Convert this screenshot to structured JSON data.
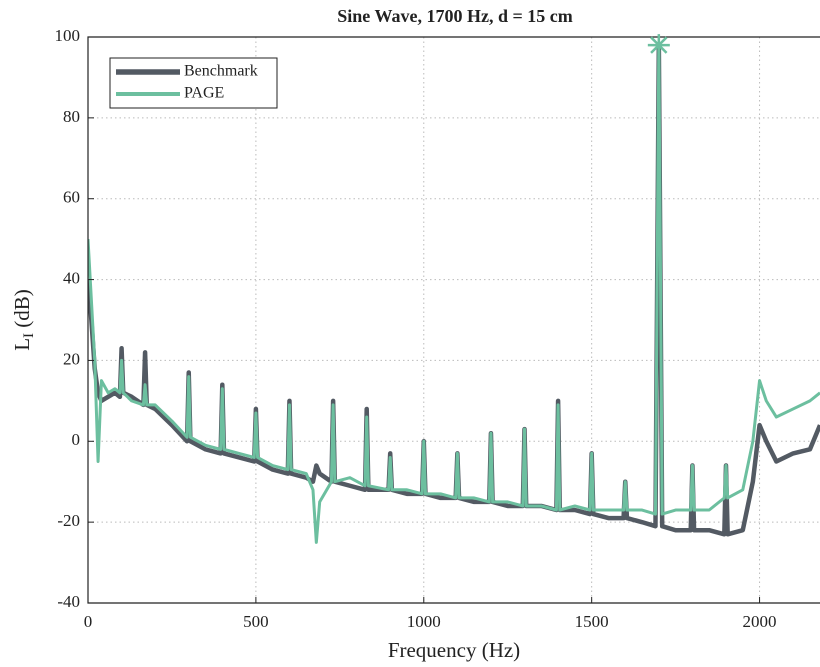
{
  "chart_data": {
    "type": "line",
    "title": "Sine Wave, 1700 Hz, d = 15 cm",
    "xlabel": "Frequency (Hz)",
    "ylabel": {
      "main": "L",
      "sub": "I",
      "unit": " (dB)"
    },
    "x": [
      0,
      10,
      20,
      30,
      40,
      60,
      80,
      95,
      100,
      105,
      130,
      165,
      170,
      175,
      200,
      250,
      295,
      300,
      305,
      350,
      395,
      400,
      405,
      450,
      495,
      500,
      505,
      550,
      595,
      600,
      605,
      650,
      670,
      680,
      690,
      725,
      730,
      735,
      780,
      825,
      830,
      835,
      895,
      900,
      905,
      950,
      995,
      1000,
      1005,
      1050,
      1095,
      1100,
      1105,
      1150,
      1195,
      1200,
      1205,
      1250,
      1295,
      1300,
      1305,
      1350,
      1395,
      1400,
      1405,
      1450,
      1495,
      1500,
      1505,
      1550,
      1595,
      1600,
      1605,
      1650,
      1690,
      1700,
      1710,
      1750,
      1795,
      1800,
      1805,
      1850,
      1895,
      1900,
      1905,
      1950,
      1980,
      2000,
      2020,
      2050,
      2100,
      2150,
      2180
    ],
    "series": [
      {
        "name": "Benchmark",
        "color": "#535a63",
        "width": 4.5,
        "values": [
          40,
          30,
          18,
          12,
          10,
          11,
          12,
          11,
          23,
          12,
          11,
          9,
          22,
          9,
          8,
          4,
          0,
          17,
          0,
          -2,
          -3,
          14,
          -3,
          -4,
          -5,
          8,
          -5,
          -7,
          -8,
          10,
          -8,
          -9,
          -10,
          -6,
          -8,
          -10,
          10,
          -10,
          -11,
          -12,
          8,
          -12,
          -12,
          -3,
          -12,
          -13,
          -13,
          0,
          -13,
          -14,
          -14,
          -3,
          -14,
          -15,
          -15,
          2,
          -15,
          -16,
          -16,
          3,
          -16,
          -16,
          -17,
          10,
          -17,
          -17,
          -18,
          -3,
          -18,
          -19,
          -19,
          -10,
          -19,
          -20,
          -21,
          98,
          -21,
          -22,
          -22,
          -6,
          -22,
          -22,
          -23,
          -6,
          -23,
          -22,
          -10,
          4,
          0,
          -5,
          -3,
          -2,
          4
        ]
      },
      {
        "name": "PAGE",
        "color": "#6cbf9f",
        "width": 3,
        "values": [
          50,
          35,
          20,
          -5,
          15,
          12,
          13,
          12,
          20,
          12,
          10,
          9,
          14,
          9,
          9,
          5,
          1,
          16,
          1,
          -1,
          -2,
          13,
          -2,
          -3,
          -4,
          7,
          -4,
          -6,
          -7,
          9,
          -7,
          -8,
          -12,
          -25,
          -15,
          -10,
          9,
          -10,
          -9,
          -11,
          6,
          -11,
          -12,
          -4,
          -12,
          -12,
          -13,
          0,
          -13,
          -13,
          -14,
          -3,
          -14,
          -14,
          -15,
          2,
          -15,
          -15,
          -16,
          3,
          -16,
          -16,
          -17,
          9,
          -17,
          -16,
          -17,
          -3,
          -17,
          -17,
          -17,
          -10,
          -17,
          -17,
          -18,
          98,
          -18,
          -17,
          -17,
          -6,
          -17,
          -17,
          -14,
          -6,
          -14,
          -12,
          0,
          15,
          10,
          6,
          8,
          10,
          12
        ]
      }
    ],
    "peak_marker": {
      "x": 1700,
      "y": 98
    },
    "xlim": [
      0,
      2180
    ],
    "xticks": [
      0,
      500,
      1000,
      1500,
      2000
    ],
    "ylim": [
      -40,
      100
    ],
    "yticks": [
      -40,
      -20,
      0,
      20,
      40,
      60,
      80,
      100
    ],
    "grid": true,
    "legend": "upper-left"
  }
}
